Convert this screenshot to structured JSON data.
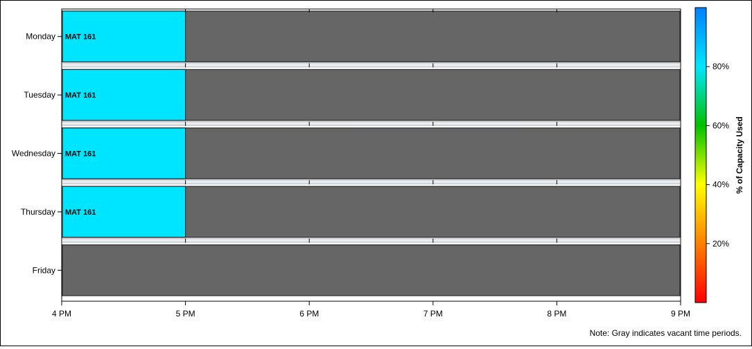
{
  "chart_data": {
    "type": "heatmap",
    "subtype": "room-schedule-timeline",
    "days": [
      "Monday",
      "Tuesday",
      "Wednesday",
      "Thursday",
      "Friday"
    ],
    "x_ticks": [
      "4 PM",
      "5 PM",
      "6 PM",
      "7 PM",
      "8 PM",
      "9 PM"
    ],
    "x_range_hours": [
      16,
      21
    ],
    "bookings": [
      {
        "day": "Monday",
        "start": 16,
        "end": 17,
        "label": "MAT 161",
        "capacity_pct": 88
      },
      {
        "day": "Tuesday",
        "start": 16,
        "end": 17,
        "label": "MAT 161",
        "capacity_pct": 88
      },
      {
        "day": "Wednesday",
        "start": 16,
        "end": 17,
        "label": "MAT 161",
        "capacity_pct": 88
      },
      {
        "day": "Thursday",
        "start": 16,
        "end": 17,
        "label": "MAT 161",
        "capacity_pct": 88
      }
    ],
    "vacant_color": "#666666",
    "booking_color": "#00E5FF",
    "colorbar": {
      "label": "% of Capacity Used",
      "ticks": [
        "20%",
        "40%",
        "60%",
        "80%"
      ],
      "tick_values": [
        20,
        40,
        60,
        80
      ],
      "range": [
        0,
        100
      ],
      "colors": [
        "#FF0000",
        "#FF8000",
        "#FFFF00",
        "#00C000",
        "#00E5FF",
        "#0080FF"
      ]
    },
    "note": "Note: Gray indicates vacant time periods."
  }
}
